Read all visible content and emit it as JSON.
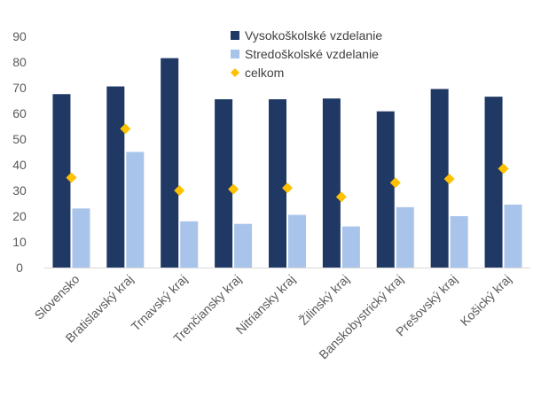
{
  "chart_data": {
    "type": "bar",
    "title": "",
    "xlabel": "",
    "ylabel": "",
    "ylim": [
      0,
      90
    ],
    "yticks": [
      0,
      10,
      20,
      30,
      40,
      50,
      60,
      70,
      80,
      90
    ],
    "grid": false,
    "legend_position": "top-right",
    "categories": [
      "Slovensko",
      "Bratislavský kraj",
      "Trnavský kraj",
      "Trenčiansky kraj",
      "Nitriansky kraj",
      "Žilinský kraj",
      "Banskobystrický kraj",
      "Prešovský kraj",
      "Košický kraj"
    ],
    "series": [
      {
        "name": "Vysokoškolské vzdelanie",
        "kind": "bar",
        "color": "#1f3864",
        "values": [
          67.5,
          70.5,
          81.5,
          65.5,
          65.5,
          65.8,
          60.8,
          69.5,
          66.5
        ]
      },
      {
        "name": "Stredoškolské vzdelanie",
        "kind": "bar",
        "color": "#a9c4eb",
        "values": [
          23,
          45,
          18,
          17,
          20.5,
          16,
          23.5,
          20,
          24.5
        ]
      },
      {
        "name": "celkom",
        "kind": "marker",
        "color": "#ffc000",
        "values": [
          35,
          54,
          30,
          30.5,
          31,
          27.5,
          33,
          34.5,
          38.5
        ]
      }
    ]
  }
}
